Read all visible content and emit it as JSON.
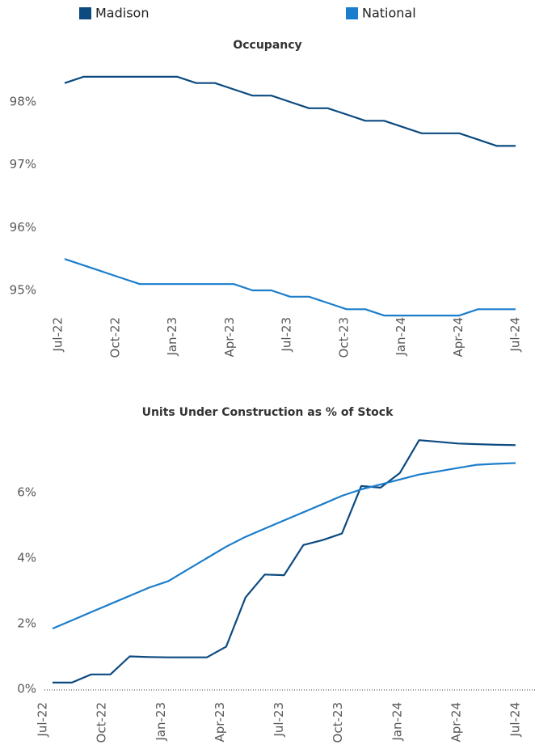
{
  "chart_data": [
    {
      "type": "line",
      "title": "Occupancy",
      "categories": [
        "Jul-22",
        null,
        null,
        "Oct-22",
        null,
        null,
        "Jan-23",
        null,
        null,
        "Apr-23",
        null,
        null,
        "Jul-23",
        null,
        null,
        "Oct-23",
        null,
        null,
        "Jan-24",
        null,
        null,
        "Apr-24",
        null,
        null,
        "Jul-24"
      ],
      "series": [
        {
          "name": "Madison",
          "color": "#0c4a80",
          "values": [
            98.3,
            98.4,
            98.4,
            98.4,
            98.4,
            98.4,
            98.4,
            98.3,
            98.3,
            98.2,
            98.1,
            98.1,
            98.0,
            97.9,
            97.9,
            97.8,
            97.7,
            97.7,
            97.6,
            97.5,
            97.5,
            97.5,
            97.4,
            97.3,
            97.3
          ]
        },
        {
          "name": "National",
          "color": "#1b7dcb",
          "values": [
            95.5,
            95.4,
            95.3,
            95.2,
            95.1,
            95.1,
            95.1,
            95.1,
            95.1,
            95.1,
            95.0,
            95.0,
            94.9,
            94.9,
            94.8,
            94.7,
            94.7,
            94.6,
            94.6,
            94.6,
            94.6,
            94.6,
            94.7,
            94.7,
            94.7
          ]
        }
      ],
      "ylim": [
        94.4,
        98.6
      ],
      "yticks": [
        {
          "value": 95,
          "label": "95%"
        },
        {
          "value": 96,
          "label": "96%"
        },
        {
          "value": 97,
          "label": "97%"
        },
        {
          "value": 98,
          "label": "98%"
        }
      ]
    },
    {
      "type": "line",
      "title": "Units Under Construction as % of Stock",
      "categories": [
        "Jul-22",
        null,
        null,
        "Oct-22",
        null,
        null,
        "Jan-23",
        null,
        null,
        "Apr-23",
        null,
        null,
        "Jul-23",
        null,
        null,
        "Oct-23",
        null,
        null,
        "Jan-24",
        null,
        null,
        "Apr-24",
        null,
        null,
        "Jul-24"
      ],
      "series": [
        {
          "name": "Madison",
          "color": "#0c4a80",
          "values": [
            0.2,
            0.2,
            0.45,
            0.45,
            1.0,
            0.98,
            0.97,
            0.97,
            0.97,
            1.3,
            2.8,
            3.5,
            3.48,
            4.4,
            4.55,
            4.75,
            6.2,
            6.15,
            6.6,
            7.6,
            7.55,
            7.5,
            7.48,
            7.46,
            7.45
          ]
        },
        {
          "name": "National",
          "color": "#1b7dcb",
          "values": [
            1.85,
            2.1,
            2.35,
            2.6,
            2.85,
            3.1,
            3.3,
            3.65,
            4.0,
            4.35,
            4.65,
            4.9,
            5.15,
            5.4,
            5.65,
            5.9,
            6.1,
            6.25,
            6.4,
            6.55,
            6.65,
            6.75,
            6.85,
            6.88,
            6.9
          ]
        }
      ],
      "ylim": [
        0,
        8
      ],
      "yticks": [
        {
          "value": 0,
          "label": "0%"
        },
        {
          "value": 2,
          "label": "2%"
        },
        {
          "value": 4,
          "label": "4%"
        },
        {
          "value": 6,
          "label": "6%"
        }
      ]
    }
  ]
}
